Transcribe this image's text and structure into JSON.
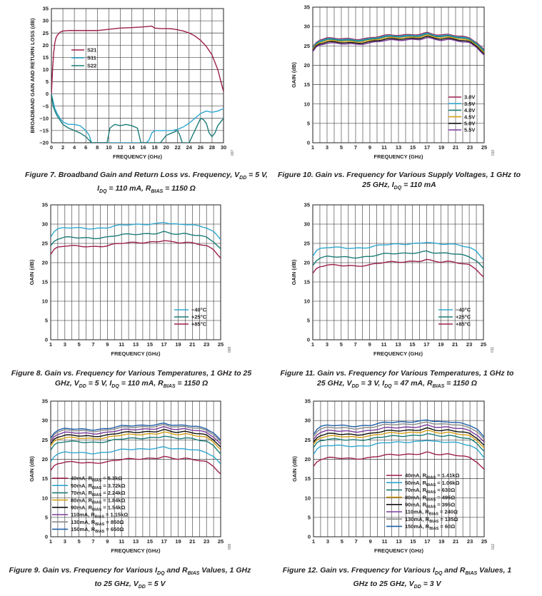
{
  "chart_data": [
    {
      "id": "fig7",
      "type": "line",
      "figure_id": "007",
      "ylabel": "BROADBAND GAIN AND RETURN LOSS (dB)",
      "xlabel": "FREQUENCY (GHz)",
      "xlim": [
        0,
        30
      ],
      "ylim": [
        -20,
        35
      ],
      "xticks": [
        0,
        2,
        4,
        6,
        8,
        10,
        12,
        14,
        16,
        18,
        20,
        22,
        24,
        26,
        28,
        30
      ],
      "yticks": [
        35,
        30,
        25,
        20,
        15,
        10,
        5,
        0,
        -5,
        -10,
        -15,
        -20
      ],
      "ytick_labels": [
        "35",
        "30",
        "25",
        "20",
        "15",
        "10",
        "5",
        "0",
        "−5",
        "−10",
        "−15",
        "−20"
      ],
      "legend": "upper-left",
      "caption_parts": [
        "Figure 7. Broadband Gain and Return Loss vs. Frequency, V",
        "DD",
        " = 5 V, I",
        "DQ",
        " = 110 mA, R",
        "BIAS",
        " = 1150 Ω"
      ],
      "series": [
        {
          "name": "S21",
          "color": "#9e1f4f",
          "x": [
            0,
            0.2,
            0.4,
            0.6,
            0.8,
            1.0,
            1.5,
            2,
            3,
            4,
            5,
            6,
            8,
            10,
            12,
            14,
            16,
            17,
            17.5,
            18,
            19,
            20,
            21,
            22,
            23,
            24,
            25,
            26,
            27,
            28,
            29,
            30
          ],
          "y": [
            0,
            10,
            17,
            21,
            23,
            24,
            25.3,
            25.8,
            26,
            26,
            26,
            26,
            26,
            26.5,
            27,
            27.2,
            27.5,
            27.7,
            27.8,
            27,
            26.8,
            26.8,
            26.7,
            26.3,
            25.8,
            25,
            23.8,
            22,
            19.5,
            16,
            10,
            1
          ]
        },
        {
          "name": "S11",
          "color": "#2fa8cf",
          "x": [
            0,
            0.3,
            0.6,
            1.0,
            1.5,
            2,
            3,
            4,
            5,
            6,
            6.6,
            7,
            8,
            9,
            10,
            11,
            12,
            13,
            14,
            15,
            16,
            16.5,
            17,
            17.5,
            18,
            19,
            20,
            21,
            22,
            23,
            24,
            25,
            26,
            27,
            28,
            29,
            30
          ],
          "y": [
            0,
            -3,
            -6,
            -8,
            -10,
            -11.5,
            -12.5,
            -12.5,
            -13,
            -15,
            -17,
            -20,
            -20,
            -20,
            -20,
            -20,
            -20,
            -20,
            -20,
            -20,
            -20,
            -20,
            -19,
            -16,
            -15,
            -15,
            -15,
            -15,
            -14.5,
            -13.5,
            -12,
            -10,
            -8,
            -7,
            -7.5,
            -7,
            -6
          ]
        },
        {
          "name": "S22",
          "color": "#1b7d78",
          "x": [
            0,
            0.3,
            0.6,
            1.0,
            2,
            3,
            4,
            5,
            6,
            7,
            8,
            9,
            9.7,
            10.2,
            11,
            12,
            13,
            14,
            15,
            15.6,
            16,
            16.5,
            17,
            17.5,
            18,
            19,
            20,
            21,
            22,
            22.4,
            22.8,
            23,
            24,
            25,
            26,
            26.5,
            27,
            27.5,
            28,
            28.5,
            29,
            29.5,
            30
          ],
          "y": [
            0,
            -5,
            -7,
            -9,
            -12.5,
            -14,
            -15,
            -16,
            -17.5,
            -20,
            -20,
            -20,
            -20,
            -14,
            -12.5,
            -13,
            -12.5,
            -13,
            -14,
            -20,
            -20,
            -20,
            -20,
            -20,
            -20,
            -20,
            -17,
            -16,
            -15,
            -17,
            -20,
            -20,
            -20,
            -15,
            -10,
            -10.5,
            -12,
            -16,
            -17.5,
            -16,
            -13,
            -11.5,
            -10
          ]
        }
      ]
    },
    {
      "id": "fig10",
      "type": "line",
      "figure_id": "010",
      "ylabel": "GAIN (dB)",
      "xlabel": "FREQUENCY (GHz)",
      "xlim": [
        1,
        25
      ],
      "ylim": [
        0,
        35
      ],
      "xticks": [
        1,
        3,
        5,
        7,
        9,
        11,
        13,
        15,
        17,
        19,
        21,
        23,
        25
      ],
      "yticks": [
        35,
        30,
        25,
        20,
        15,
        10,
        5,
        0
      ],
      "legend": "lower-right",
      "caption_parts": [
        "Figure 10. Gain vs. Frequency for Various Supply Voltages, 1 GHz to 25 GHz, I",
        "DQ",
        " = 110 mA"
      ],
      "series": [
        {
          "name": "3.0V",
          "color": "#9e1f4f",
          "offset": 0.4
        },
        {
          "name": "3.5V",
          "color": "#2fa8cf",
          "offset": 0.2
        },
        {
          "name": "4.0V",
          "color": "#1b7d78",
          "offset": 0.0
        },
        {
          "name": "4.5V",
          "color": "#d4a017",
          "offset": -0.3
        },
        {
          "name": "5.0V",
          "color": "#111111",
          "offset": -0.6
        },
        {
          "name": "5.5V",
          "color": "#7a3b9a",
          "offset": -0.9
        }
      ]
    },
    {
      "id": "fig8",
      "type": "line",
      "figure_id": "008",
      "ylabel": "GAIN (dB)",
      "xlabel": "FREQUENCY (GHz)",
      "xlim": [
        1,
        25
      ],
      "ylim": [
        0,
        35
      ],
      "xticks": [
        1,
        3,
        5,
        7,
        9,
        11,
        13,
        15,
        17,
        19,
        21,
        23,
        25
      ],
      "yticks": [
        35,
        30,
        25,
        20,
        15,
        10,
        5,
        0
      ],
      "legend": "lower-right",
      "caption_parts": [
        "Figure 8. Gain vs. Frequency for Various Temperatures, 1 GHz to 25 GHz, V",
        "DD",
        " = 5 V, I",
        "DQ",
        " = 110 mA, R",
        "BIAS",
        " = 1150 Ω"
      ],
      "series": [
        {
          "name": "−40°C",
          "color": "#2fa8cf",
          "offset": 2.5
        },
        {
          "name": "+25°C",
          "color": "#1b7d78",
          "offset": 0.0
        },
        {
          "name": "+85°C",
          "color": "#9e1f4f",
          "offset": -2.2
        }
      ]
    },
    {
      "id": "fig11",
      "type": "line",
      "figure_id": "011",
      "ylabel": "GAIN (dB)",
      "xlabel": "FREQUENCY (GHz)",
      "xlim": [
        1,
        25
      ],
      "ylim": [
        0,
        35
      ],
      "xticks": [
        1,
        3,
        5,
        7,
        9,
        11,
        13,
        15,
        17,
        19,
        21,
        23,
        25
      ],
      "yticks": [
        35,
        30,
        25,
        20,
        15,
        10,
        5,
        0
      ],
      "legend": "lower-right",
      "caption_parts": [
        "Figure 11. Gain vs. Frequency for Various Temperatures, 1 GHz to 25 GHz, V",
        "DD",
        " = 3 V, I",
        "DQ",
        " = 47 mA, R",
        "BIAS",
        " = 1150 Ω"
      ],
      "series": [
        {
          "name": "−40°C",
          "color": "#2fa8cf",
          "offset": -2.6
        },
        {
          "name": "+25°C",
          "color": "#1b7d78",
          "offset": -5.0
        },
        {
          "name": "+85°C",
          "color": "#9e1f4f",
          "offset": -7.2
        }
      ]
    },
    {
      "id": "fig9",
      "type": "line",
      "figure_id": "009",
      "ylabel": "GAIN (dB)",
      "xlabel": "FREQUENCY (GHz)",
      "xlim": [
        1,
        25
      ],
      "ylim": [
        0,
        35
      ],
      "xticks": [
        1,
        3,
        5,
        7,
        9,
        11,
        13,
        15,
        17,
        19,
        21,
        23,
        25
      ],
      "yticks": [
        35,
        30,
        25,
        20,
        15,
        10,
        5,
        0
      ],
      "legend": "lower-left",
      "caption_parts": [
        "Figure 9. Gain vs. Frequency for Various I",
        "DQ",
        " and R",
        "BIAS",
        " Values, 1 GHz to 25 GHz, V",
        "DD",
        " = 5 V"
      ],
      "series": [
        {
          "name": "40mA, R",
          "sub": "BIAS",
          "value": " = 5.3kΩ",
          "color": "#9e1f4f",
          "offset": -7.3
        },
        {
          "name": "50mA, R",
          "sub": "BIAS",
          "value": " = 3.72kΩ",
          "color": "#2fa8cf",
          "offset": -4.8
        },
        {
          "name": "70mA, R",
          "sub": "BIAS",
          "value": " = 2.24kΩ",
          "color": "#1b7d78",
          "offset": -2.0
        },
        {
          "name": "80mA, R",
          "sub": "BIAS",
          "value": " = 1.84kΩ",
          "color": "#d4a017",
          "offset": -1.0
        },
        {
          "name": "90mA, R",
          "sub": "BIAS",
          "value": " = 1.54kΩ",
          "color": "#111111",
          "offset": -0.4
        },
        {
          "name": "110mA, R",
          "sub": "BIAS",
          "value": " = 1.15kΩ",
          "color": "#7a3b9a",
          "offset": 0.3
        },
        {
          "name": "130mA, R",
          "sub": "BIAS",
          "value": " = 850Ω",
          "color": "#8a8a8a",
          "offset": 0.9
        },
        {
          "name": "150mA, R",
          "sub": "BIAS",
          "value": " = 650Ω",
          "color": "#1f5fa8",
          "offset": 1.3
        }
      ]
    },
    {
      "id": "fig12",
      "type": "line",
      "figure_id": "012",
      "ylabel": "GAIN (dB)",
      "xlabel": "FREQUENCY (GHz)",
      "xlim": [
        1,
        25
      ],
      "ylim": [
        0,
        35
      ],
      "xticks": [
        1,
        3,
        5,
        7,
        9,
        11,
        13,
        15,
        17,
        19,
        21,
        23,
        25
      ],
      "yticks": [
        35,
        30,
        25,
        20,
        15,
        10,
        5,
        0
      ],
      "legend": "lower-right",
      "caption_parts": [
        "Figure 12. Gain vs. Frequency for Various I",
        "DQ",
        " and R",
        "BIAS",
        " Values, 1 GHz to 25 GHz, V",
        "DD",
        " = 3 V"
      ],
      "series": [
        {
          "name": "40mA, R",
          "sub": "BIAS",
          "value": " = 1.41kΩ",
          "color": "#9e1f4f",
          "offset": -6.2
        },
        {
          "name": "50mA, R",
          "sub": "BIAS",
          "value": " = 1.06kΩ",
          "color": "#2fa8cf",
          "offset": -3.0
        },
        {
          "name": "70mA, R",
          "sub": "BIAS",
          "value": " = 630Ω",
          "color": "#1b7d78",
          "offset": -1.4
        },
        {
          "name": "80mA, R",
          "sub": "BIAS",
          "value": " = 495Ω",
          "color": "#d4a017",
          "offset": -0.6
        },
        {
          "name": "90mA, R",
          "sub": "BIAS",
          "value": " = 395Ω",
          "color": "#111111",
          "offset": 0.0
        },
        {
          "name": "110mA, R",
          "sub": "BIAS",
          "value": " = 240Ω",
          "color": "#7a3b9a",
          "offset": 0.8
        },
        {
          "name": "130mA, R",
          "sub": "BIAS",
          "value": " = 135Ω",
          "color": "#8a8a8a",
          "offset": 1.6
        },
        {
          "name": "150mA, R",
          "sub": "BIAS",
          "value": " = 60Ω",
          "color": "#1f5fa8",
          "offset": 2.2
        }
      ]
    }
  ],
  "base_gain_curve": {
    "note_units": "GHz vs dB",
    "x": [
      1,
      1.5,
      2,
      3,
      4,
      5,
      6,
      7,
      8,
      9,
      10,
      11,
      12,
      13,
      14,
      15,
      16,
      16.5,
      17,
      17.5,
      18,
      19,
      20,
      21,
      22,
      23,
      24,
      25
    ],
    "y": [
      24.3,
      25.6,
      26.2,
      26.6,
      26.6,
      26.5,
      26.4,
      26.3,
      26.4,
      26.6,
      27.0,
      27.3,
      27.4,
      27.4,
      27.4,
      27.5,
      27.6,
      27.8,
      28.0,
      27.8,
      27.6,
      27.4,
      27.5,
      27.3,
      27.0,
      26.6,
      25.5,
      23.5
    ]
  }
}
